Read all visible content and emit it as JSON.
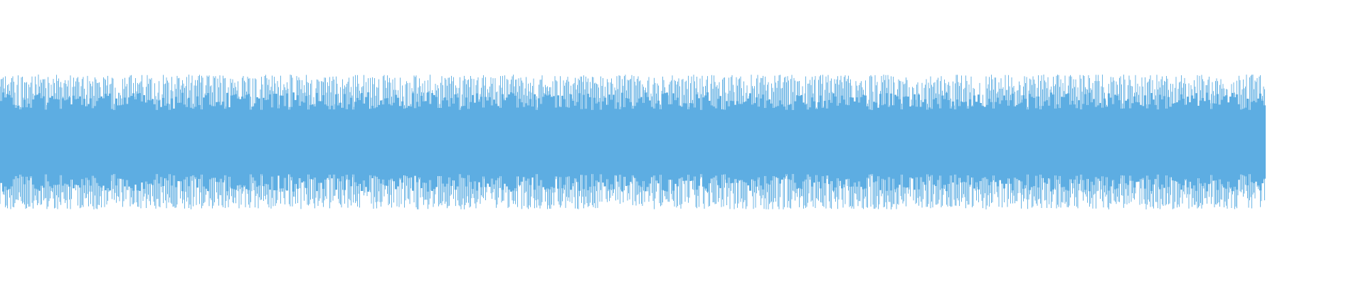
{
  "chart_data": {
    "type": "waveform",
    "title": "",
    "xlabel": "",
    "ylabel": "",
    "ylim": [
      -1,
      1
    ],
    "grid": false,
    "legend": "none",
    "color": "#5dade2",
    "background": "#ffffff",
    "peak_amplitude": 0.95,
    "rms_amplitude": 0.45
  }
}
